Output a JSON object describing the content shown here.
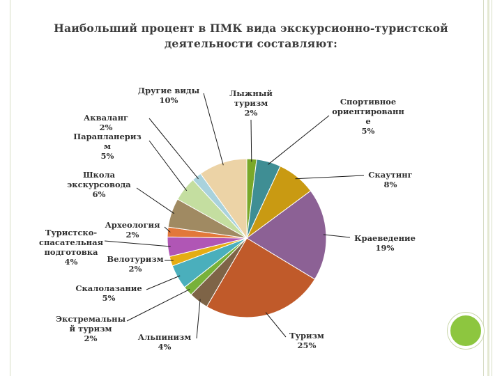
{
  "title": {
    "line1": "Наибольший процент в ПМК вида экскурсионно-туристской",
    "line2": "деятельности составляют:"
  },
  "colors": {
    "accent_circle": "#8dc63f",
    "frame": "#d7dcc4"
  },
  "chart_data": {
    "type": "pie",
    "slices": [
      {
        "name": "Лыжный туризм",
        "value": 2,
        "label": "2%",
        "color": "#7aa82a"
      },
      {
        "name": "Спортивное ориентирование",
        "value": 5,
        "label": "5%",
        "color": "#3f8e94"
      },
      {
        "name": "Скаутинг",
        "value": 8,
        "label": "8%",
        "color": "#c99a12"
      },
      {
        "name": "Краеведение",
        "value": 19,
        "label": "19%",
        "color": "#8c6195"
      },
      {
        "name": "Туризм",
        "value": 25,
        "label": "25%",
        "color": "#c05a2a"
      },
      {
        "name": "Альпинизм",
        "value": 4,
        "label": "4%",
        "color": "#7e6447"
      },
      {
        "name": "Экстремальный туризм",
        "value": 2,
        "label": "2%",
        "color": "#78b13a"
      },
      {
        "name": "Скалолазание",
        "value": 5,
        "label": "5%",
        "color": "#4aafbc"
      },
      {
        "name": "Велотуризм",
        "value": 2,
        "label": "2%",
        "color": "#e5ad14"
      },
      {
        "name": "Туристско-спасательная подготовка",
        "value": 4,
        "label": "4%",
        "color": "#b056b5"
      },
      {
        "name": "Археология",
        "value": 2,
        "label": "2%",
        "color": "#e2783a"
      },
      {
        "name": "Школа экскурсовода",
        "value": 6,
        "label": "6%",
        "color": "#a08a62"
      },
      {
        "name": "Параплан",
        "value": 5,
        "label": "5%",
        "color": "#c4dea0"
      },
      {
        "name": "Акваланг",
        "value": 2,
        "label": "2%",
        "color": "#a9d2dc"
      },
      {
        "name": "Другие виды",
        "value": 10,
        "label": "10%",
        "color": "#ecd3a6"
      }
    ],
    "labels": [
      {
        "lines": [
          "Лыжный",
          "туризм",
          "2%"
        ]
      },
      {
        "lines": [
          "Спортивное",
          "ориентированн",
          "е",
          "5%"
        ]
      },
      {
        "lines": [
          "Скаутинг",
          "8%"
        ]
      },
      {
        "lines": [
          "Краеведение",
          "19%"
        ]
      },
      {
        "lines": [
          "Туризм",
          "25%"
        ]
      },
      {
        "lines": [
          "Альпинизм",
          "4%"
        ]
      },
      {
        "lines": [
          "Экстремальны",
          "й туризм",
          "2%"
        ]
      },
      {
        "lines": [
          "Скалолазание",
          "5%"
        ]
      },
      {
        "lines": [
          "Велотуризм",
          "2%"
        ]
      },
      {
        "lines": [
          "Туристско-",
          "спасательная",
          "подготовка",
          "4%"
        ]
      },
      {
        "lines": [
          "Археология",
          "2%"
        ]
      },
      {
        "lines": [
          "Школа",
          "экскурсовода",
          "6%"
        ]
      },
      {
        "lines": [
          "Парапланериз",
          "м",
          "5%"
        ]
      },
      {
        "lines": [
          "Акваланг",
          "2%"
        ]
      },
      {
        "lines": [
          "Другие виды",
          "10%"
        ]
      }
    ]
  }
}
